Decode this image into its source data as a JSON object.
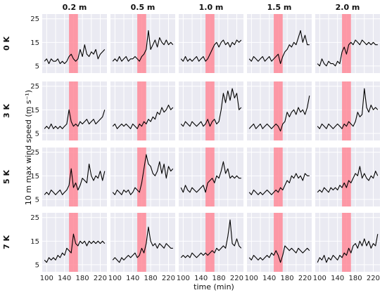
{
  "chart_data": {
    "type": "line",
    "layout": "small-multiples-grid",
    "column_labels": [
      "0.2 m",
      "0.5 m",
      "1.0 m",
      "1.5 m",
      "2.0 m"
    ],
    "row_labels": [
      "0 K",
      "3 K",
      "5 K",
      "7 K"
    ],
    "xlabel": "time (min)",
    "ylabel": "10 m max wind speed (m s⁻¹)",
    "xlim": [
      90,
      235
    ],
    "ylim": [
      2,
      27
    ],
    "xticks": [
      100,
      120,
      140,
      160,
      180,
      200,
      220
    ],
    "yticks": [
      5,
      15,
      25
    ],
    "grid": true,
    "colors": {
      "line": "#000000",
      "band": "#ff8a99",
      "panel_bg": "#eaeaf2",
      "grid": "#ffffff"
    },
    "highlight_band": {
      "x_start": 150,
      "x_end": 170
    },
    "x": [
      95,
      100,
      105,
      110,
      115,
      120,
      125,
      130,
      135,
      140,
      145,
      150,
      155,
      160,
      165,
      170,
      175,
      180,
      185,
      190,
      195,
      200,
      205,
      210,
      215,
      220,
      225,
      230
    ],
    "panels": [
      {
        "row": "0 K",
        "col": "0.2 m",
        "values": [
          7,
          8,
          6,
          8,
          7,
          7,
          8,
          6,
          7,
          6,
          7,
          9,
          10,
          8,
          7,
          8,
          12,
          9,
          14,
          10,
          9,
          11,
          10,
          12,
          8,
          10,
          11,
          12
        ]
      },
      {
        "row": "0 K",
        "col": "0.5 m",
        "values": [
          7,
          8,
          7,
          9,
          7,
          8,
          9,
          7,
          8,
          8,
          9,
          8,
          7,
          9,
          10,
          12,
          20,
          12,
          14,
          16,
          13,
          17,
          15,
          14,
          16,
          14,
          15,
          14
        ]
      },
      {
        "row": "0 K",
        "col": "1.0 m",
        "values": [
          8,
          7,
          9,
          7,
          8,
          7,
          8,
          9,
          7,
          8,
          9,
          7,
          8,
          10,
          12,
          14,
          15,
          13,
          15,
          16,
          14,
          15,
          13,
          15,
          14,
          16,
          15,
          16
        ]
      },
      {
        "row": "0 K",
        "col": "1.5 m",
        "values": [
          8,
          7,
          9,
          8,
          7,
          8,
          9,
          7,
          8,
          9,
          7,
          8,
          9,
          10,
          6,
          9,
          11,
          12,
          14,
          13,
          15,
          14,
          17,
          20,
          15,
          18,
          14,
          14
        ]
      },
      {
        "row": "0 K",
        "col": "2.0 m",
        "values": [
          6,
          5,
          8,
          6,
          5,
          7,
          6,
          6,
          5,
          7,
          6,
          11,
          13,
          10,
          14,
          15,
          14,
          16,
          15,
          14,
          16,
          15,
          14,
          15,
          14,
          15,
          14,
          14
        ]
      },
      {
        "row": "3 K",
        "col": "0.2 m",
        "values": [
          7,
          8,
          7,
          9,
          7,
          8,
          7,
          8,
          7,
          8,
          9,
          15,
          10,
          8,
          9,
          8,
          10,
          9,
          10,
          11,
          9,
          10,
          11,
          9,
          10,
          11,
          12,
          15
        ]
      },
      {
        "row": "3 K",
        "col": "0.5 m",
        "values": [
          8,
          9,
          7,
          8,
          9,
          8,
          9,
          8,
          7,
          9,
          8,
          7,
          9,
          8,
          10,
          9,
          11,
          10,
          12,
          11,
          14,
          13,
          16,
          14,
          15,
          17,
          15,
          16
        ]
      },
      {
        "row": "3 K",
        "col": "1.0 m",
        "values": [
          9,
          8,
          10,
          9,
          8,
          10,
          9,
          8,
          9,
          10,
          8,
          9,
          11,
          8,
          10,
          11,
          9,
          10,
          15,
          22,
          18,
          23,
          19,
          24,
          20,
          22,
          15,
          16
        ]
      },
      {
        "row": "3 K",
        "col": "1.5 m",
        "values": [
          7,
          8,
          9,
          7,
          8,
          9,
          7,
          8,
          9,
          8,
          7,
          8,
          9,
          8,
          6,
          9,
          10,
          14,
          12,
          14,
          15,
          13,
          16,
          14,
          15,
          13,
          16,
          21
        ]
      },
      {
        "row": "3 K",
        "col": "2.0 m",
        "values": [
          8,
          7,
          9,
          8,
          7,
          9,
          8,
          7,
          8,
          9,
          8,
          7,
          9,
          8,
          10,
          9,
          8,
          10,
          14,
          12,
          13,
          24,
          16,
          14,
          17,
          15,
          16,
          15
        ]
      },
      {
        "row": "5 K",
        "col": "0.2 m",
        "values": [
          7,
          8,
          7,
          9,
          8,
          7,
          8,
          9,
          7,
          8,
          9,
          11,
          18,
          10,
          12,
          9,
          11,
          14,
          13,
          12,
          20,
          15,
          13,
          15,
          14,
          17,
          13,
          17
        ]
      },
      {
        "row": "5 K",
        "col": "0.5 m",
        "values": [
          8,
          7,
          9,
          8,
          7,
          9,
          8,
          9,
          7,
          8,
          10,
          9,
          8,
          12,
          18,
          24,
          20,
          19,
          16,
          15,
          17,
          21,
          16,
          20,
          14,
          19,
          17,
          18
        ]
      },
      {
        "row": "5 K",
        "col": "1.0 m",
        "values": [
          10,
          8,
          11,
          9,
          8,
          10,
          9,
          8,
          9,
          10,
          11,
          8,
          12,
          13,
          14,
          12,
          15,
          14,
          17,
          21,
          16,
          18,
          14,
          15,
          14,
          15,
          14,
          14
        ]
      },
      {
        "row": "5 K",
        "col": "1.5 m",
        "values": [
          8,
          7,
          9,
          8,
          7,
          8,
          7,
          8,
          9,
          8,
          7,
          8,
          9,
          8,
          10,
          9,
          11,
          13,
          12,
          15,
          14,
          16,
          14,
          15,
          13,
          16,
          15,
          15
        ]
      },
      {
        "row": "5 K",
        "col": "2.0 m",
        "values": [
          8,
          9,
          8,
          10,
          9,
          8,
          10,
          9,
          10,
          9,
          11,
          10,
          12,
          10,
          13,
          12,
          14,
          16,
          15,
          19,
          14,
          16,
          14,
          13,
          15,
          14,
          17,
          15
        ]
      },
      {
        "row": "7 K",
        "col": "0.2 m",
        "values": [
          7,
          6,
          8,
          7,
          8,
          7,
          9,
          8,
          10,
          9,
          12,
          11,
          10,
          18,
          14,
          13,
          15,
          14,
          15,
          13,
          15,
          14,
          15,
          14,
          15,
          14,
          15,
          14
        ]
      },
      {
        "row": "7 K",
        "col": "0.5 m",
        "values": [
          7,
          8,
          7,
          6,
          8,
          7,
          8,
          9,
          8,
          9,
          10,
          8,
          9,
          12,
          10,
          14,
          21,
          15,
          13,
          14,
          12,
          14,
          13,
          12,
          14,
          13,
          12,
          12
        ]
      },
      {
        "row": "7 K",
        "col": "1.0 m",
        "values": [
          8,
          9,
          8,
          9,
          8,
          10,
          9,
          8,
          9,
          10,
          9,
          10,
          9,
          10,
          11,
          10,
          12,
          11,
          12,
          13,
          12,
          17,
          24,
          14,
          13,
          16,
          13,
          12
        ]
      },
      {
        "row": "7 K",
        "col": "1.5 m",
        "values": [
          8,
          7,
          9,
          8,
          7,
          8,
          7,
          8,
          9,
          8,
          10,
          9,
          11,
          9,
          6,
          9,
          13,
          12,
          11,
          12,
          11,
          10,
          12,
          11,
          10,
          11,
          12,
          11
        ]
      },
      {
        "row": "7 K",
        "col": "2.0 m",
        "values": [
          6,
          8,
          7,
          9,
          6,
          8,
          7,
          9,
          8,
          7,
          9,
          8,
          10,
          9,
          12,
          10,
          13,
          14,
          12,
          15,
          13,
          16,
          13,
          15,
          12,
          14,
          13,
          18
        ]
      }
    ]
  }
}
